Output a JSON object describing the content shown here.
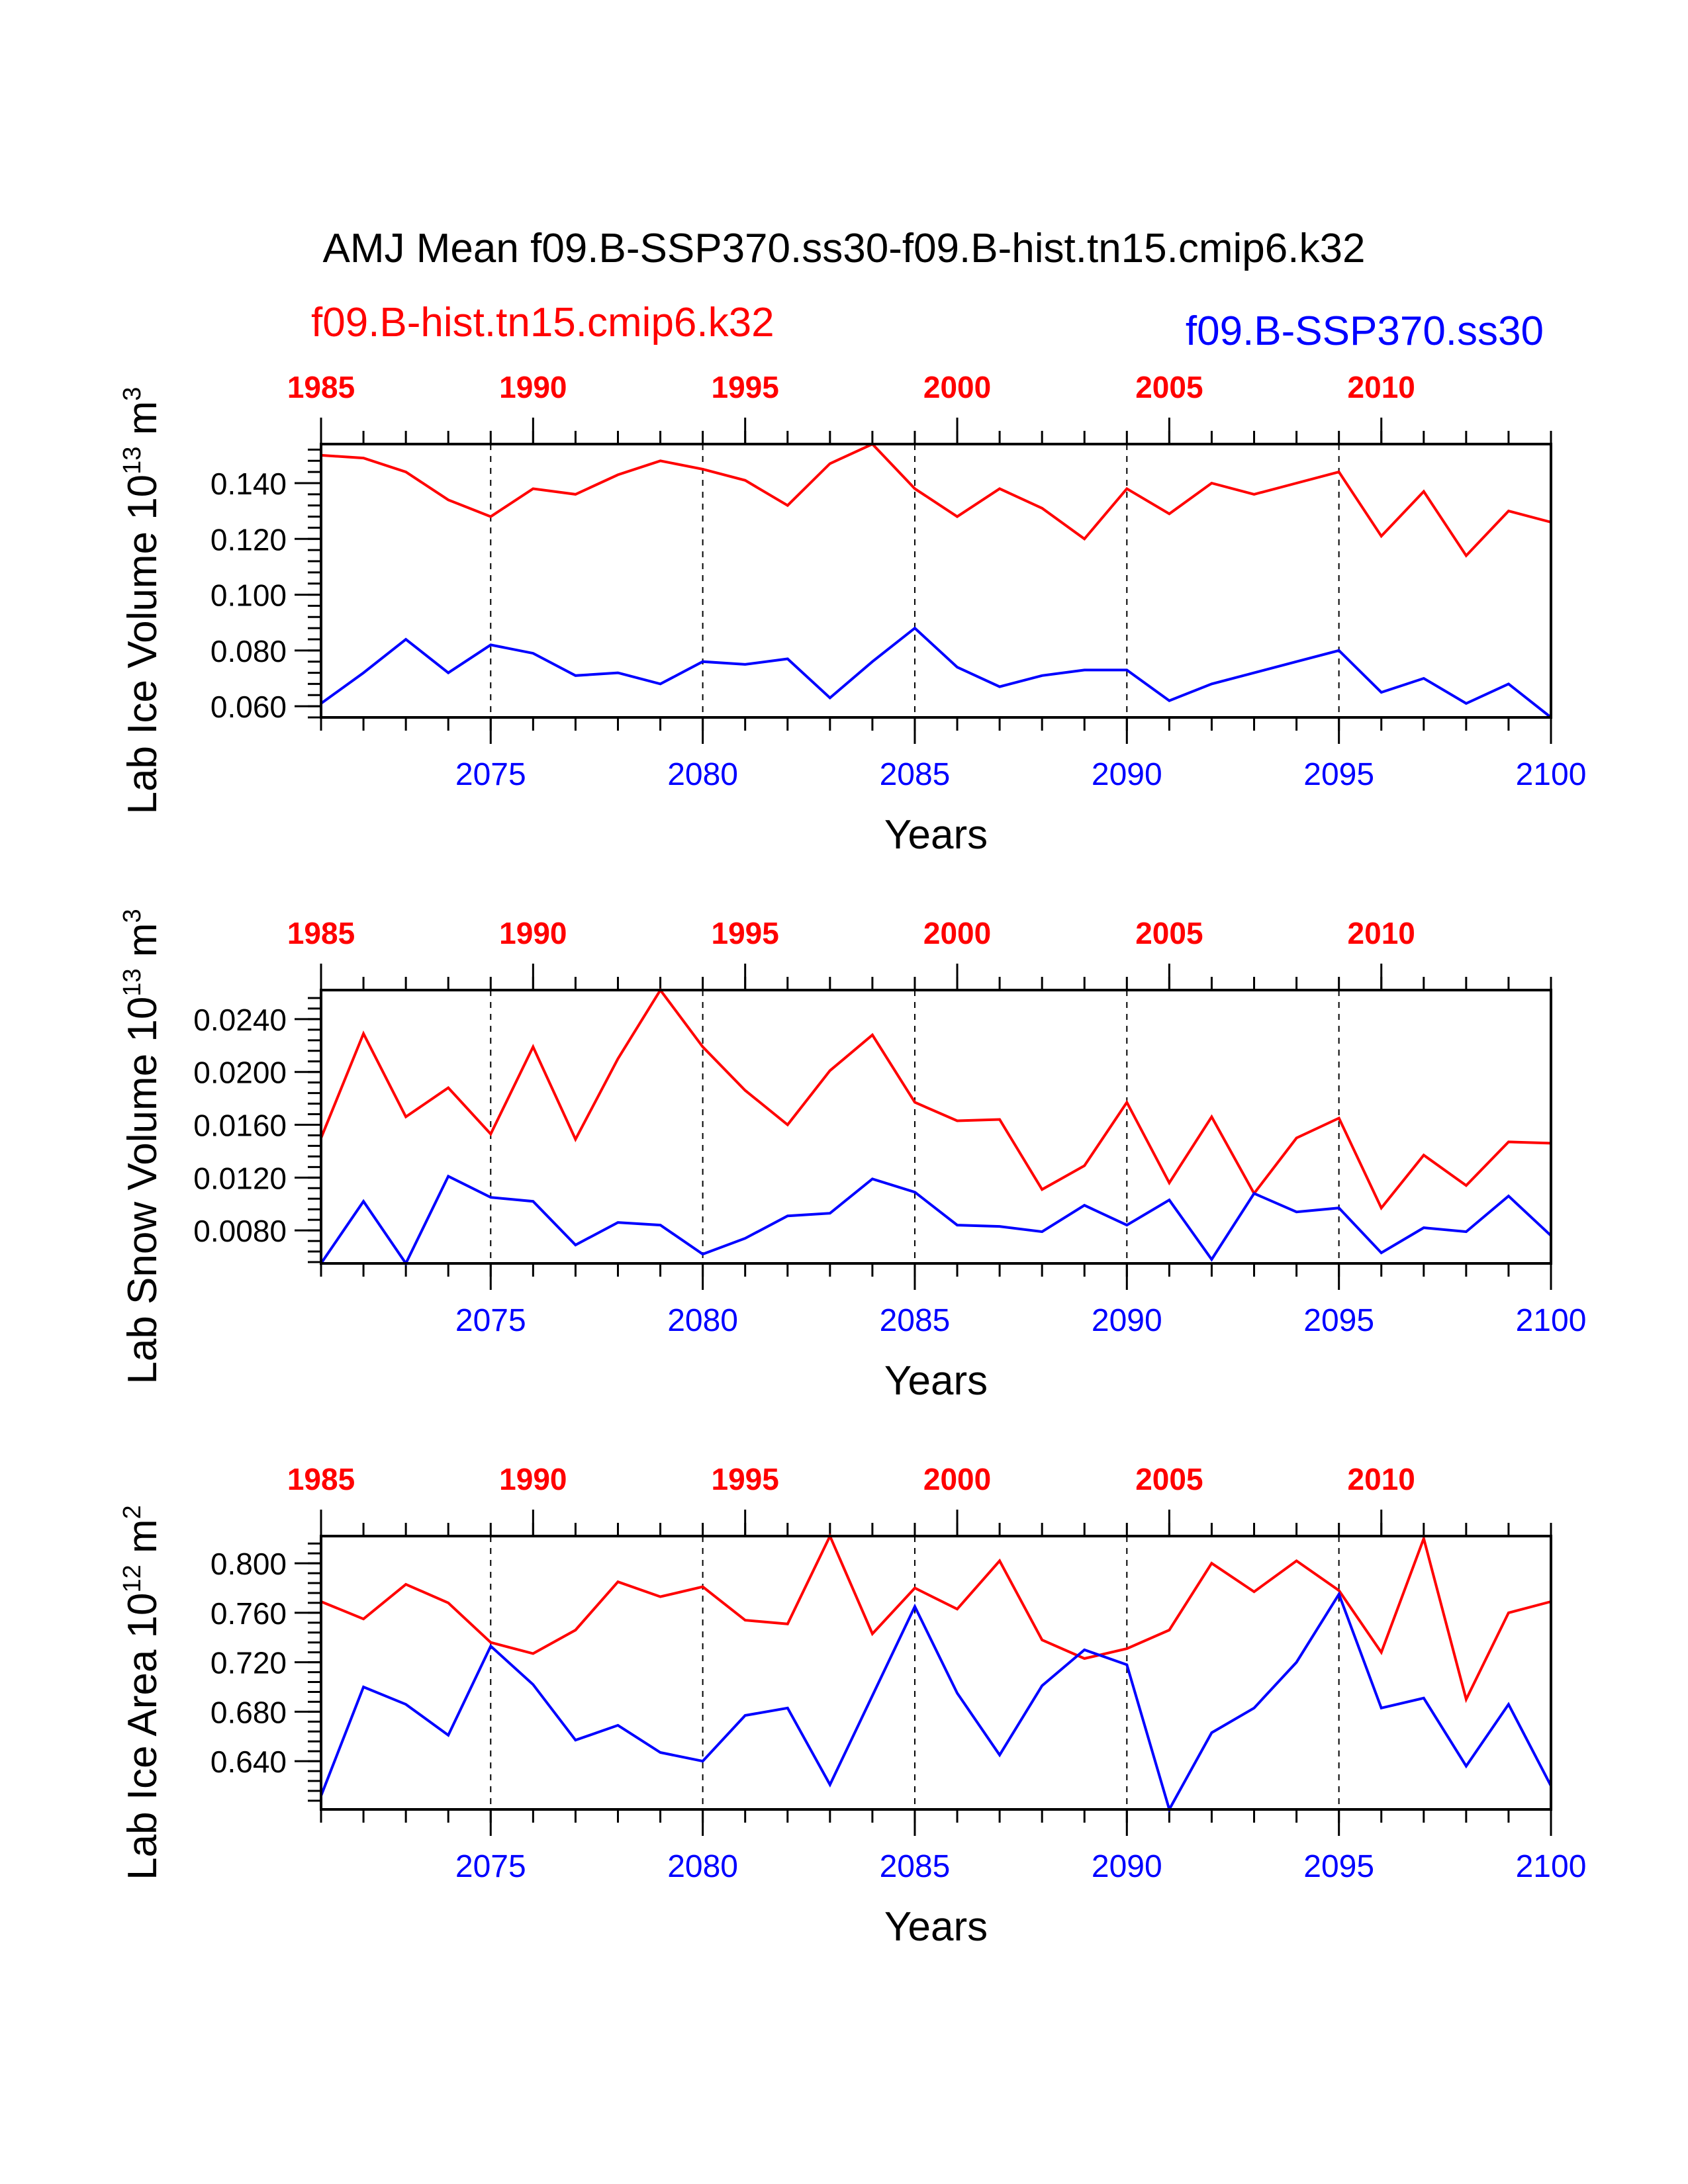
{
  "title": "AMJ Mean f09.B-SSP370.ss30-f09.B-hist.tn15.cmip6.k32",
  "legend": {
    "historical": "f09.B-hist.tn15.cmip6.k32",
    "scenario": "f09.B-SSP370.ss30"
  },
  "colors": {
    "historical": "#ff0000",
    "scenario": "#0000ff",
    "axis": "#000000"
  },
  "chart_data": [
    {
      "type": "line",
      "ylabel": "Lab Ice Volume 10",
      "ylabel_exp": "13",
      "ylabel_unit": " m",
      "ylabel_unit_exp": "3",
      "xlabel": "Years",
      "bottom_axis": {
        "range": [
          2071,
          2100
        ],
        "ticks": [
          "2075",
          "2080",
          "2085",
          "2090",
          "2095",
          "2100"
        ]
      },
      "top_axis": {
        "range": [
          1985,
          2014
        ],
        "ticks": [
          "1985",
          "1990",
          "1995",
          "2000",
          "2005",
          "2010"
        ]
      },
      "ylim": [
        0.056,
        0.154
      ],
      "yticks": [
        "0.060",
        "0.080",
        "0.100",
        "0.120",
        "0.140"
      ],
      "yticks_values": [
        0.06,
        0.08,
        0.1,
        0.12,
        0.14
      ],
      "series": [
        {
          "name": "f09.B-hist.tn15.cmip6.k32",
          "years": [
            1985,
            1986,
            1987,
            1988,
            1989,
            1990,
            1991,
            1992,
            1993,
            1994,
            1995,
            1996,
            1997,
            1998,
            1999,
            2000,
            2001,
            2002,
            2003,
            2004,
            2005,
            2006,
            2007,
            2008,
            2009,
            2010,
            2011,
            2012,
            2013,
            2014
          ],
          "values": [
            0.15,
            0.149,
            0.144,
            0.134,
            0.128,
            0.138,
            0.136,
            0.143,
            0.148,
            0.145,
            0.141,
            0.132,
            0.147,
            0.154,
            0.138,
            0.128,
            0.138,
            0.131,
            0.12,
            0.138,
            0.129,
            0.14,
            0.136,
            0.14,
            0.144,
            0.121,
            0.137,
            0.114,
            0.13,
            0.126
          ]
        },
        {
          "name": "f09.B-SSP370.ss30",
          "years": [
            2071,
            2072,
            2073,
            2074,
            2075,
            2076,
            2077,
            2078,
            2079,
            2080,
            2081,
            2082,
            2083,
            2084,
            2085,
            2086,
            2087,
            2088,
            2089,
            2090,
            2091,
            2092,
            2093,
            2094,
            2095,
            2096,
            2097,
            2098,
            2099,
            2100
          ],
          "values": [
            0.061,
            0.072,
            0.084,
            0.072,
            0.082,
            0.079,
            0.071,
            0.072,
            0.068,
            0.076,
            0.075,
            0.077,
            0.063,
            0.076,
            0.088,
            0.074,
            0.067,
            0.071,
            0.073,
            0.073,
            0.062,
            0.068,
            0.072,
            0.076,
            0.08,
            0.065,
            0.07,
            0.061,
            0.068,
            0.056
          ]
        }
      ]
    },
    {
      "type": "line",
      "ylabel": "Lab Snow Volume 10",
      "ylabel_exp": "13",
      "ylabel_unit": " m",
      "ylabel_unit_exp": "3",
      "xlabel": "Years",
      "bottom_axis": {
        "range": [
          2071,
          2100
        ],
        "ticks": [
          "2075",
          "2080",
          "2085",
          "2090",
          "2095",
          "2100"
        ]
      },
      "top_axis": {
        "range": [
          1985,
          2014
        ],
        "ticks": [
          "1985",
          "1990",
          "1995",
          "2000",
          "2005",
          "2010"
        ]
      },
      "ylim": [
        0.0055,
        0.0262
      ],
      "yticks": [
        "0.0080",
        "0.0120",
        "0.0160",
        "0.0200",
        "0.0240"
      ],
      "yticks_values": [
        0.008,
        0.012,
        0.016,
        0.02,
        0.024
      ],
      "series": [
        {
          "name": "f09.B-hist.tn15.cmip6.k32",
          "years": [
            1985,
            1986,
            1987,
            1988,
            1989,
            1990,
            1991,
            1992,
            1993,
            1994,
            1995,
            1996,
            1997,
            1998,
            1999,
            2000,
            2001,
            2002,
            2003,
            2004,
            2005,
            2006,
            2007,
            2008,
            2009,
            2010,
            2011,
            2012,
            2013,
            2014
          ],
          "values": [
            0.015,
            0.0229,
            0.0166,
            0.0188,
            0.0153,
            0.0219,
            0.0149,
            0.021,
            0.0262,
            0.0219,
            0.0186,
            0.016,
            0.0201,
            0.0228,
            0.0177,
            0.0163,
            0.0164,
            0.0111,
            0.0129,
            0.0177,
            0.0116,
            0.0166,
            0.0108,
            0.015,
            0.0165,
            0.0097,
            0.0137,
            0.0114,
            0.0147,
            0.0146
          ]
        },
        {
          "name": "f09.B-SSP370.ss30",
          "years": [
            2071,
            2072,
            2073,
            2074,
            2075,
            2076,
            2077,
            2078,
            2079,
            2080,
            2081,
            2082,
            2083,
            2084,
            2085,
            2086,
            2087,
            2088,
            2089,
            2090,
            2091,
            2092,
            2093,
            2094,
            2095,
            2096,
            2097,
            2098,
            2099,
            2100
          ],
          "values": [
            0.0055,
            0.0102,
            0.0055,
            0.0121,
            0.0105,
            0.0102,
            0.0069,
            0.0086,
            0.0084,
            0.0062,
            0.0074,
            0.0091,
            0.0093,
            0.0119,
            0.0109,
            0.0084,
            0.0083,
            0.0079,
            0.0099,
            0.0084,
            0.0103,
            0.0058,
            0.0108,
            0.0094,
            0.0097,
            0.0063,
            0.0082,
            0.0079,
            0.0106,
            0.0076
          ]
        }
      ]
    },
    {
      "type": "line",
      "ylabel": "Lab Ice Area 10",
      "ylabel_exp": "12",
      "ylabel_unit": " m",
      "ylabel_unit_exp": "2",
      "xlabel": "Years",
      "bottom_axis": {
        "range": [
          2071,
          2100
        ],
        "ticks": [
          "2075",
          "2080",
          "2085",
          "2090",
          "2095",
          "2100"
        ]
      },
      "top_axis": {
        "range": [
          1985,
          2014
        ],
        "ticks": [
          "1985",
          "1990",
          "1995",
          "2000",
          "2005",
          "2010"
        ]
      },
      "ylim": [
        0.601,
        0.822
      ],
      "yticks": [
        "0.640",
        "0.680",
        "0.720",
        "0.760",
        "0.800"
      ],
      "yticks_values": [
        0.64,
        0.68,
        0.72,
        0.76,
        0.8
      ],
      "series": [
        {
          "name": "f09.B-hist.tn15.cmip6.k32",
          "years": [
            1985,
            1986,
            1987,
            1988,
            1989,
            1990,
            1991,
            1992,
            1993,
            1994,
            1995,
            1996,
            1997,
            1998,
            1999,
            2000,
            2001,
            2002,
            2003,
            2004,
            2005,
            2006,
            2007,
            2008,
            2009,
            2010,
            2011,
            2012,
            2013,
            2014
          ],
          "values": [
            0.769,
            0.755,
            0.783,
            0.768,
            0.736,
            0.727,
            0.746,
            0.785,
            0.773,
            0.781,
            0.754,
            0.751,
            0.822,
            0.743,
            0.78,
            0.763,
            0.802,
            0.738,
            0.723,
            0.731,
            0.746,
            0.8,
            0.777,
            0.802,
            0.778,
            0.728,
            0.82,
            0.69,
            0.76,
            0.769
          ]
        },
        {
          "name": "f09.B-SSP370.ss30",
          "years": [
            2071,
            2072,
            2073,
            2074,
            2075,
            2076,
            2077,
            2078,
            2079,
            2080,
            2081,
            2082,
            2083,
            2084,
            2085,
            2086,
            2087,
            2088,
            2089,
            2090,
            2091,
            2092,
            2093,
            2094,
            2095,
            2096,
            2097,
            2098,
            2099,
            2100
          ],
          "values": [
            0.612,
            0.7,
            0.686,
            0.661,
            0.733,
            0.702,
            0.657,
            0.669,
            0.647,
            0.64,
            0.677,
            0.683,
            0.621,
            0.693,
            0.765,
            0.695,
            0.645,
            0.701,
            0.73,
            0.718,
            0.601,
            0.663,
            0.683,
            0.72,
            0.775,
            0.683,
            0.691,
            0.636,
            0.686,
            0.62
          ]
        }
      ]
    }
  ]
}
